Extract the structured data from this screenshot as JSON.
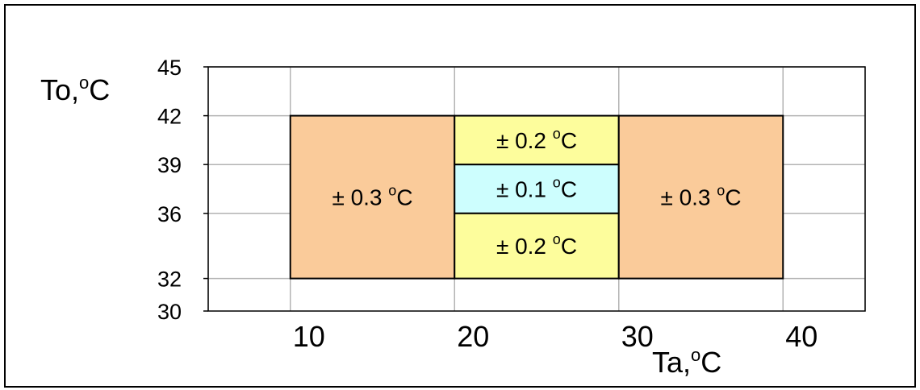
{
  "chart_data": {
    "type": "heatmap",
    "title": "",
    "xlabel": "Ta,",
    "xlabel_sup": "o",
    "xlabel_unit": "C",
    "ylabel": "To,",
    "ylabel_sup": "o",
    "ylabel_unit": "C",
    "xlim": [
      5,
      45
    ],
    "ylim": [
      30,
      45
    ],
    "x_ticks": [
      10,
      20,
      30,
      40
    ],
    "x_tick_labels": [
      "10",
      "20",
      "30",
      "40"
    ],
    "y_ticks": [
      30,
      32,
      36,
      39,
      42,
      45
    ],
    "y_tick_labels": [
      "30",
      "32",
      "36",
      "39",
      "42",
      "45"
    ],
    "x_gridlines": [
      5,
      10,
      20,
      30,
      40,
      45
    ],
    "y_gridlines": [
      32,
      36,
      39,
      42,
      45
    ],
    "grid": true,
    "colors": {
      "orange": "#FACB9A",
      "yellow": "#FDFD9C",
      "cyan": "#CDFEFE",
      "grid": "#B3B3B3",
      "border": "#000000"
    },
    "regions": [
      {
        "x0": 10,
        "x1": 20,
        "y0": 32,
        "y1": 42,
        "value": "± 0.3 ",
        "sup": "o",
        "unit": "C",
        "color": "orange"
      },
      {
        "x0": 20,
        "x1": 30,
        "y0": 39,
        "y1": 42,
        "value": "± 0.2 ",
        "sup": "o",
        "unit": "C",
        "color": "yellow"
      },
      {
        "x0": 20,
        "x1": 30,
        "y0": 36,
        "y1": 39,
        "value": "± 0.1 ",
        "sup": "o",
        "unit": "C",
        "color": "cyan"
      },
      {
        "x0": 20,
        "x1": 30,
        "y0": 32,
        "y1": 36,
        "value": "± 0.2 ",
        "sup": "o",
        "unit": "C",
        "color": "yellow"
      },
      {
        "x0": 30,
        "x1": 40,
        "y0": 32,
        "y1": 42,
        "value": "± 0.3 ",
        "sup": "o",
        "unit": "C",
        "color": "orange"
      }
    ]
  }
}
